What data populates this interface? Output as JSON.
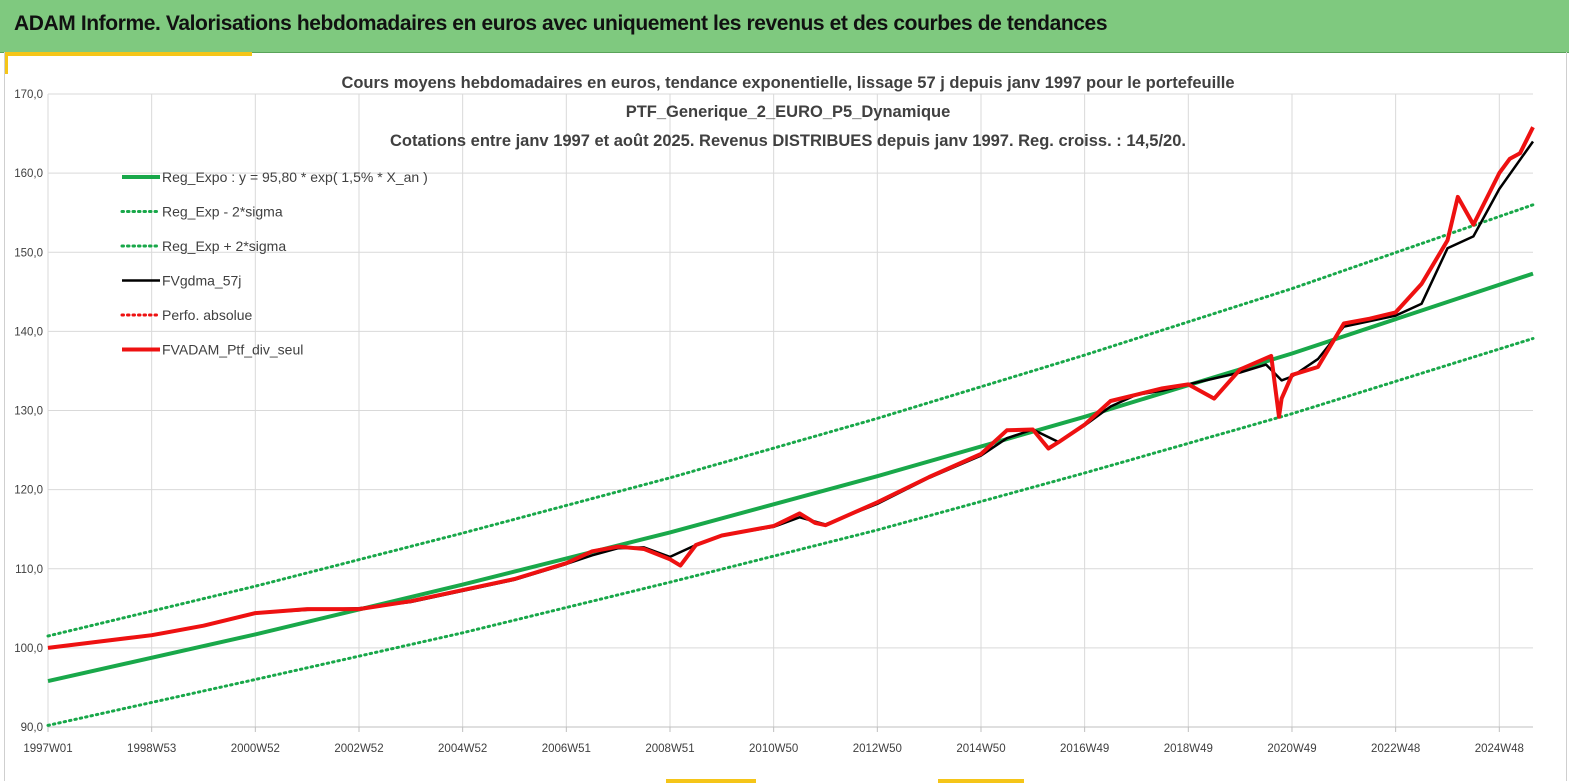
{
  "banner": {
    "title": "ADAM Informe. Valorisations hebdomadaires en euros avec uniquement les revenus et des courbes de tendances"
  },
  "colors": {
    "banner_bg": "#7fc97f",
    "accent_yellow": "#f5c518",
    "reg_green": "#19a84a",
    "fvgdma_black": "#000000",
    "adam_red": "#ee1111"
  },
  "chart_data": {
    "type": "line",
    "title_lines": [
      "Cours moyens hebdomadaires  en euros, tendance exponentielle, lissage 57 j depuis janv 1997 pour le portefeuille",
      "PTF_Generique_2_EURO_P5_Dynamique",
      "Cotations entre janv 1997 et août 2025. Revenus DISTRIBUES depuis janv 1997. Reg. croiss. : 14,5/20."
    ],
    "xlabel": "",
    "ylabel": "",
    "x_start_label": "1997W01",
    "x_end": 28.65,
    "x_ticks": [
      {
        "x": 0,
        "label": "1997W01"
      },
      {
        "x": 2.0,
        "label": "1998W53"
      },
      {
        "x": 4.0,
        "label": "2000W52"
      },
      {
        "x": 6.0,
        "label": "2002W52"
      },
      {
        "x": 8.0,
        "label": "2004W52"
      },
      {
        "x": 10.0,
        "label": "2006W51"
      },
      {
        "x": 12.0,
        "label": "2008W51"
      },
      {
        "x": 14.0,
        "label": "2010W50"
      },
      {
        "x": 16.0,
        "label": "2012W50"
      },
      {
        "x": 18.0,
        "label": "2014W50"
      },
      {
        "x": 20.0,
        "label": "2016W49"
      },
      {
        "x": 22.0,
        "label": "2018W49"
      },
      {
        "x": 24.0,
        "label": "2020W49"
      },
      {
        "x": 26.0,
        "label": "2022W48"
      },
      {
        "x": 28.0,
        "label": "2024W48"
      }
    ],
    "ylim": [
      90,
      170
    ],
    "y_ticks": [
      {
        "v": 90,
        "label": "90,0"
      },
      {
        "v": 100,
        "label": "100,0"
      },
      {
        "v": 110,
        "label": "110,0"
      },
      {
        "v": 120,
        "label": "120,0"
      },
      {
        "v": 130,
        "label": "130,0"
      },
      {
        "v": 140,
        "label": "140,0"
      },
      {
        "v": 150,
        "label": "150,0"
      },
      {
        "v": 160,
        "label": "160,0"
      },
      {
        "v": 170,
        "label": "170,0"
      }
    ],
    "grid": true,
    "legend_position": "top-left",
    "legend": [
      {
        "name": "Reg_Expo : y = 95,80 * exp( 1,5% *  X_an )",
        "style": "solid-thick",
        "color": "#19a84a"
      },
      {
        "name": "Reg_Exp - 2*sigma",
        "style": "dotted",
        "color": "#19a84a"
      },
      {
        "name": "Reg_Exp + 2*sigma",
        "style": "dotted",
        "color": "#19a84a"
      },
      {
        "name": "FVgdma_57j",
        "style": "solid",
        "color": "#000000"
      },
      {
        "name": "Perfo. absolue",
        "style": "dotted",
        "color": "#ee1111"
      },
      {
        "name": "FVADAM_Ptf_div_seul",
        "style": "solid-thick",
        "color": "#ee1111"
      }
    ],
    "series": [
      {
        "name": "Reg_Expo : y = 95,80 * exp( 1,5% *  X_an )",
        "x": [
          0,
          4,
          8,
          12,
          16,
          20,
          24,
          28.65
        ],
        "values": [
          95.8,
          101.7,
          108.0,
          114.6,
          121.7,
          129.2,
          137.2,
          147.3
        ]
      },
      {
        "name": "Reg_Exp - 2*sigma",
        "x": [
          0,
          4,
          8,
          12,
          16,
          20,
          24,
          28.65
        ],
        "values": [
          90.2,
          96.0,
          101.9,
          108.3,
          114.9,
          122.1,
          129.6,
          139.1
        ]
      },
      {
        "name": "Reg_Exp + 2*sigma",
        "x": [
          0,
          4,
          8,
          12,
          16,
          20,
          24,
          28.65
        ],
        "values": [
          101.5,
          107.8,
          114.5,
          121.5,
          129.0,
          137.0,
          145.4,
          156.0
        ]
      },
      {
        "name": "FVgdma_57j",
        "x": [
          0,
          1,
          2,
          3,
          4,
          5,
          6,
          7,
          8,
          9,
          10,
          10.5,
          11,
          11.5,
          12,
          12.5,
          13,
          14,
          14.5,
          15,
          16,
          17,
          18,
          18.5,
          19,
          19.5,
          20,
          20.5,
          21,
          21.5,
          22,
          23,
          23.5,
          23.8,
          24,
          24.5,
          25,
          26,
          26.5,
          27,
          27.5,
          28,
          28.65
        ],
        "values": [
          100.0,
          100.8,
          101.6,
          102.8,
          104.4,
          104.8,
          105.0,
          105.8,
          107.2,
          108.6,
          110.6,
          111.7,
          112.6,
          112.7,
          111.5,
          113.0,
          114.2,
          115.3,
          116.5,
          115.6,
          118.2,
          121.5,
          124.3,
          126.5,
          127.6,
          126.0,
          128.1,
          130.5,
          132.0,
          132.5,
          133.3,
          134.8,
          135.8,
          133.8,
          134.3,
          136.5,
          140.6,
          142.0,
          143.5,
          150.5,
          152.0,
          158.0,
          164.0
        ]
      },
      {
        "name": "FVADAM_Ptf_div_seul",
        "x": [
          0,
          1,
          2,
          3,
          4,
          5,
          6,
          7,
          8,
          9,
          10,
          10.5,
          11,
          11.5,
          12,
          12.2,
          12.5,
          13,
          14,
          14.5,
          14.8,
          15,
          16,
          17,
          18,
          18.5,
          19,
          19.3,
          19.5,
          20,
          20.5,
          21,
          21.5,
          22,
          22.5,
          23,
          23.6,
          23.75,
          23.8,
          24,
          24.5,
          25,
          25.5,
          26,
          26.5,
          27,
          27.2,
          27.5,
          28,
          28.2,
          28.4,
          28.65
        ],
        "values": [
          100.0,
          100.8,
          101.6,
          102.8,
          104.4,
          104.9,
          104.9,
          105.9,
          107.3,
          108.7,
          110.7,
          112.2,
          112.8,
          112.5,
          111.2,
          110.4,
          113.0,
          114.2,
          115.4,
          117.0,
          115.8,
          115.5,
          118.4,
          121.6,
          124.5,
          127.5,
          127.6,
          125.2,
          126.0,
          128.2,
          131.2,
          132.0,
          132.8,
          133.3,
          131.5,
          135.2,
          136.9,
          129.2,
          131.5,
          134.5,
          135.5,
          141.0,
          141.6,
          142.4,
          146.0,
          151.5,
          157.0,
          153.5,
          160.0,
          161.8,
          162.5,
          165.8
        ]
      }
    ]
  }
}
